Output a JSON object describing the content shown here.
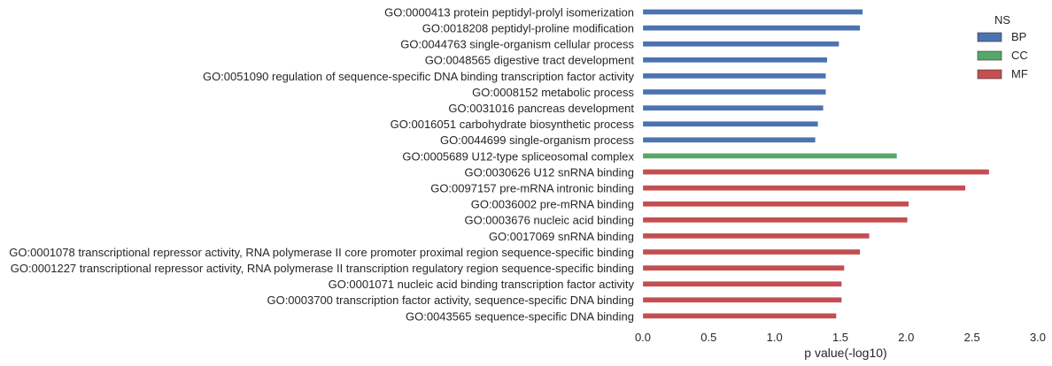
{
  "chart_data": {
    "type": "bar",
    "orientation": "horizontal",
    "xlabel": "p value(-log10)",
    "ylabel": "",
    "xlim": [
      0,
      3.0
    ],
    "xticks": [
      "0.0",
      "0.5",
      "1.0",
      "1.5",
      "2.0",
      "2.5",
      "3.0"
    ],
    "grid": false,
    "legend": {
      "title": "NS",
      "placement": "top-right",
      "entries": [
        {
          "name": "BP",
          "color": "#4c72b0"
        },
        {
          "name": "CC",
          "color": "#55a868"
        },
        {
          "name": "MF",
          "color": "#c44e52"
        }
      ]
    },
    "bars": [
      {
        "label": "GO:0000413 protein peptidyl-prolyl isomerization",
        "value": 1.67,
        "ns": "BP"
      },
      {
        "label": "GO:0018208 peptidyl-proline modification",
        "value": 1.65,
        "ns": "BP"
      },
      {
        "label": "GO:0044763 single-organism cellular process",
        "value": 1.49,
        "ns": "BP"
      },
      {
        "label": "GO:0048565 digestive tract development",
        "value": 1.4,
        "ns": "BP"
      },
      {
        "label": "GO:0051090 regulation of sequence-specific DNA binding transcription factor activity",
        "value": 1.39,
        "ns": "BP"
      },
      {
        "label": "GO:0008152 metabolic process",
        "value": 1.39,
        "ns": "BP"
      },
      {
        "label": "GO:0031016 pancreas development",
        "value": 1.37,
        "ns": "BP"
      },
      {
        "label": "GO:0016051 carbohydrate biosynthetic process",
        "value": 1.33,
        "ns": "BP"
      },
      {
        "label": "GO:0044699 single-organism process",
        "value": 1.31,
        "ns": "BP"
      },
      {
        "label": "GO:0005689 U12-type spliceosomal complex",
        "value": 1.93,
        "ns": "CC"
      },
      {
        "label": "GO:0030626 U12 snRNA binding",
        "value": 2.63,
        "ns": "MF"
      },
      {
        "label": "GO:0097157 pre-mRNA intronic binding",
        "value": 2.45,
        "ns": "MF"
      },
      {
        "label": "GO:0036002 pre-mRNA binding",
        "value": 2.02,
        "ns": "MF"
      },
      {
        "label": "GO:0003676 nucleic acid binding",
        "value": 2.01,
        "ns": "MF"
      },
      {
        "label": "GO:0017069 snRNA binding",
        "value": 1.72,
        "ns": "MF"
      },
      {
        "label": "GO:0001078 transcriptional repressor activity, RNA polymerase II core promoter proximal region sequence-specific binding",
        "value": 1.65,
        "ns": "MF"
      },
      {
        "label": "GO:0001227 transcriptional repressor activity, RNA polymerase II transcription regulatory region sequence-specific binding",
        "value": 1.53,
        "ns": "MF"
      },
      {
        "label": "GO:0001071 nucleic acid binding transcription factor activity",
        "value": 1.51,
        "ns": "MF"
      },
      {
        "label": "GO:0003700 transcription factor activity, sequence-specific DNA binding",
        "value": 1.51,
        "ns": "MF"
      },
      {
        "label": "GO:0043565 sequence-specific DNA binding",
        "value": 1.47,
        "ns": "MF"
      }
    ]
  }
}
